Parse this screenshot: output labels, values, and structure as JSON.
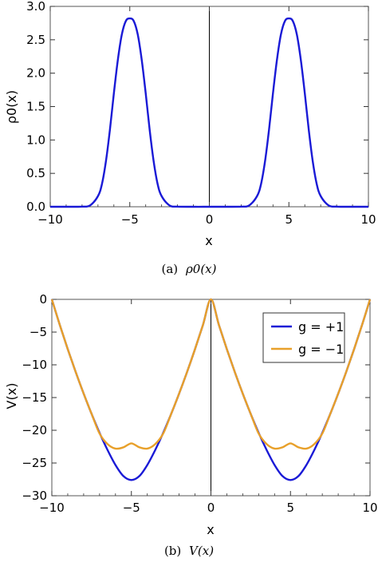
{
  "colors": {
    "g_plus": "#1a1ad6",
    "g_minus": "#e8a02a",
    "frame": "#555555",
    "axis_line": "#000000"
  },
  "chart_data": [
    {
      "type": "line",
      "panel": "a",
      "caption_prefix": "(a)",
      "caption_math": "ρ0(x)",
      "xlabel": "x",
      "ylabel": "ρ0(x)",
      "xlim": [
        -10,
        10
      ],
      "ylim": [
        0,
        3.0
      ],
      "xticks": [
        -10,
        -5,
        0,
        5,
        10
      ],
      "xtick_labels": [
        "−10",
        "−5",
        "0",
        "5",
        "10"
      ],
      "yticks": [
        0,
        0.5,
        1.0,
        1.5,
        2.0,
        2.5,
        3.0
      ],
      "ytick_labels": [
        "0.0",
        "0.5",
        "1.0",
        "1.5",
        "2.0",
        "2.5",
        "3.0"
      ],
      "grid": false,
      "vertical_line_at": 0,
      "series": [
        {
          "color": "#1a1ad6",
          "x": [
            -10,
            -8.5,
            -8,
            -7.5,
            -7,
            -6.75,
            -6.5,
            -6.25,
            -6,
            -5.75,
            -5.5,
            -5.25,
            -5,
            -4.75,
            -4.5,
            -4.25,
            -4,
            -3.75,
            -3.5,
            -3.25,
            -3,
            -2.5,
            -2,
            -1,
            0,
            1,
            2,
            2.5,
            3,
            3.25,
            3.5,
            3.75,
            4,
            4.25,
            4.5,
            4.75,
            5,
            5.25,
            5.5,
            5.75,
            6,
            6.25,
            6.5,
            6.75,
            7,
            7.5,
            8,
            8.5,
            10
          ],
          "y": [
            0,
            0,
            0.002,
            0.02,
            0.16,
            0.34,
            0.68,
            1.15,
            1.7,
            2.2,
            2.58,
            2.78,
            2.82,
            2.78,
            2.58,
            2.2,
            1.7,
            1.15,
            0.68,
            0.34,
            0.16,
            0.02,
            0.002,
            0,
            0,
            0,
            0.002,
            0.02,
            0.16,
            0.34,
            0.68,
            1.15,
            1.7,
            2.2,
            2.58,
            2.78,
            2.82,
            2.78,
            2.58,
            2.2,
            1.7,
            1.15,
            0.68,
            0.34,
            0.16,
            0.02,
            0.002,
            0,
            0
          ]
        }
      ]
    },
    {
      "type": "line",
      "panel": "b",
      "caption_prefix": "(b)",
      "caption_math": "V(x)",
      "xlabel": "x",
      "ylabel": "V(x)",
      "xlim": [
        -10,
        10
      ],
      "ylim": [
        -30,
        0
      ],
      "xticks": [
        -10,
        -5,
        0,
        5,
        10
      ],
      "xtick_labels": [
        "−10",
        "−5",
        "0",
        "5",
        "10"
      ],
      "yticks": [
        0,
        -5,
        -10,
        -15,
        -20,
        -25,
        -30
      ],
      "ytick_labels": [
        "0",
        "−5",
        "−10",
        "−15",
        "−20",
        "−25",
        "−30"
      ],
      "grid": false,
      "vertical_line_at": 0,
      "legend_position": "top-right",
      "series": [
        {
          "name": "g = +1",
          "color": "#1a1ad6",
          "x": [
            -10,
            -9.5,
            -9,
            -8.5,
            -8,
            -7.5,
            -7,
            -6.5,
            -6,
            -5.5,
            -5,
            -4.5,
            -4,
            -3.5,
            -3,
            -2.5,
            -2,
            -1.5,
            -1,
            -0.5,
            0,
            0.5,
            1,
            1.5,
            2,
            2.5,
            3,
            3.5,
            4,
            4.5,
            5,
            5.5,
            6,
            6.5,
            7,
            7.5,
            8,
            8.5,
            9,
            9.5,
            10
          ],
          "y": [
            0,
            -3.9,
            -7.6,
            -11.1,
            -14.4,
            -17.5,
            -20.4,
            -23.0,
            -25.3,
            -27.0,
            -27.6,
            -27.0,
            -25.3,
            -23.0,
            -20.4,
            -17.5,
            -14.4,
            -11.1,
            -7.6,
            -3.9,
            0,
            -3.9,
            -7.6,
            -11.1,
            -14.4,
            -17.5,
            -20.4,
            -23.0,
            -25.3,
            -27.0,
            -27.6,
            -27.0,
            -25.3,
            -23.0,
            -20.4,
            -17.5,
            -14.4,
            -11.1,
            -7.6,
            -3.9,
            0
          ]
        },
        {
          "name": "g = −1",
          "color": "#e8a02a",
          "x": [
            -10,
            -9.5,
            -9,
            -8.5,
            -8,
            -7.5,
            -7,
            -6.5,
            -6,
            -5.5,
            -5,
            -4.5,
            -4,
            -3.5,
            -3,
            -2.5,
            -2,
            -1.5,
            -1,
            -0.5,
            0,
            0.5,
            1,
            1.5,
            2,
            2.5,
            3,
            3.5,
            4,
            4.5,
            5,
            5.5,
            6,
            6.5,
            7,
            7.5,
            8,
            8.5,
            9,
            9.5,
            10
          ],
          "y": [
            0,
            -3.9,
            -7.6,
            -11.1,
            -14.4,
            -17.5,
            -20.5,
            -22.1,
            -22.8,
            -22.6,
            -22.0,
            -22.6,
            -22.8,
            -22.1,
            -20.5,
            -17.5,
            -14.4,
            -11.1,
            -7.6,
            -3.9,
            0,
            -3.9,
            -7.6,
            -11.1,
            -14.4,
            -17.5,
            -20.5,
            -22.1,
            -22.8,
            -22.6,
            -22.0,
            -22.6,
            -22.8,
            -22.1,
            -20.5,
            -17.5,
            -14.4,
            -11.1,
            -7.6,
            -3.9,
            0
          ]
        }
      ]
    }
  ]
}
